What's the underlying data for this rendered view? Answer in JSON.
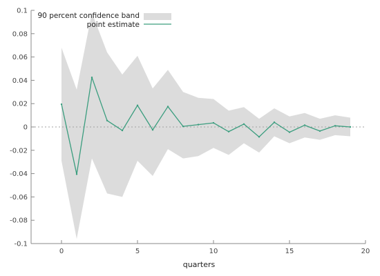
{
  "chart_data": {
    "type": "line",
    "xlabel": "quarters",
    "ylabel": "",
    "xlim": [
      -2,
      20
    ],
    "ylim": [
      -0.1,
      0.1
    ],
    "x_ticks": [
      0,
      5,
      10,
      15,
      20
    ],
    "x_tick_labels": [
      "0",
      "5",
      "10",
      "15",
      "20"
    ],
    "y_ticks": [
      -0.1,
      -0.08,
      -0.06,
      -0.04,
      -0.02,
      0,
      0.02,
      0.04,
      0.06,
      0.08,
      0.1
    ],
    "y_tick_labels": [
      "-0.1",
      "-0.08",
      "-0.06",
      "-0.04",
      "-0.02",
      "0",
      "0.02",
      "0.04",
      "0.06",
      "0.08",
      "0.1"
    ],
    "grid": false,
    "zero_line": true,
    "legend_position": "top-center",
    "x": [
      0,
      1,
      2,
      3,
      4,
      5,
      6,
      7,
      8,
      9,
      10,
      11,
      12,
      13,
      14,
      15,
      16,
      17,
      18,
      19
    ],
    "series": [
      {
        "name": "point estimate",
        "kind": "line",
        "color": "#3a9d7e",
        "values": [
          0.0195,
          -0.0405,
          0.0425,
          0.0055,
          -0.003,
          0.0185,
          -0.0025,
          0.0175,
          0.0005,
          0.002,
          0.0035,
          -0.004,
          0.0025,
          -0.0085,
          0.004,
          -0.0045,
          0.0015,
          -0.0035,
          0.001,
          0.0
        ]
      },
      {
        "name": "90 percent confidence band",
        "kind": "band",
        "color": "#dcdcdc",
        "upper": [
          0.068,
          0.032,
          0.098,
          0.064,
          0.045,
          0.061,
          0.033,
          0.049,
          0.03,
          0.025,
          0.024,
          0.014,
          0.017,
          0.007,
          0.016,
          0.009,
          0.012,
          0.007,
          0.01,
          0.008
        ],
        "lower": [
          -0.029,
          -0.096,
          -0.027,
          -0.057,
          -0.06,
          -0.029,
          -0.042,
          -0.019,
          -0.027,
          -0.025,
          -0.018,
          -0.024,
          -0.014,
          -0.022,
          -0.008,
          -0.014,
          -0.009,
          -0.011,
          -0.007,
          -0.008
        ]
      }
    ]
  }
}
